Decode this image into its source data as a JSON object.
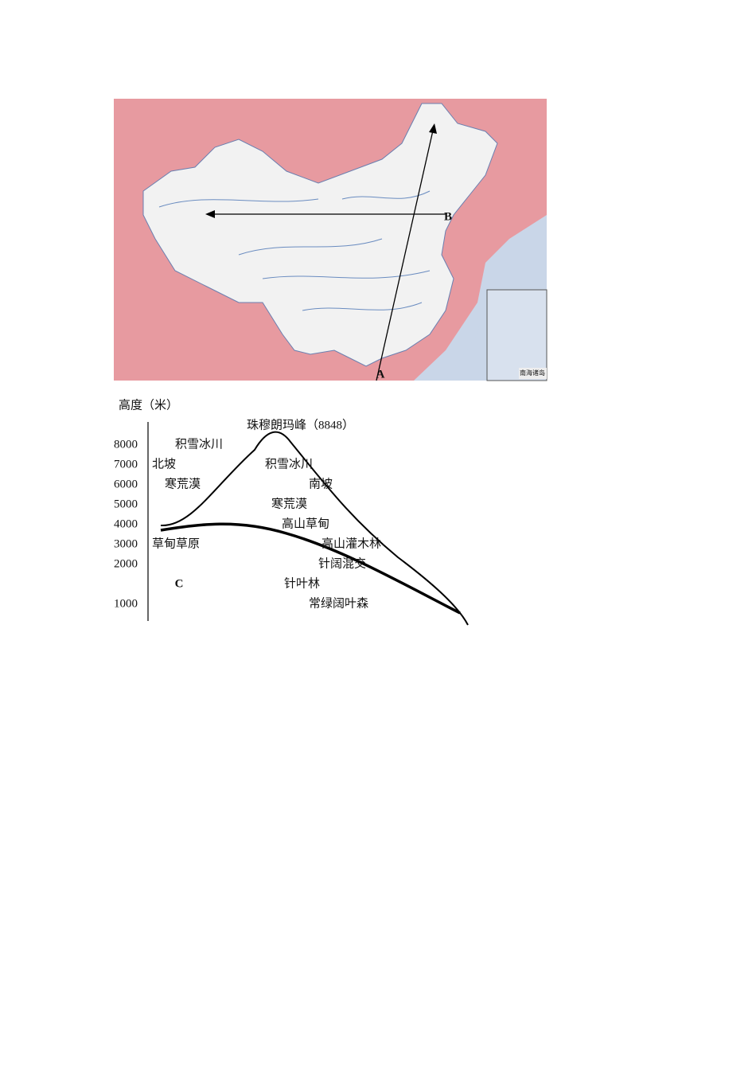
{
  "map": {
    "inset_label": "南海诸岛",
    "point_a": "A",
    "point_b": "B"
  },
  "diagram": {
    "axis_title": "高度（米）",
    "ticks": [
      8000,
      7000,
      6000,
      5000,
      4000,
      3000,
      2000,
      1000
    ],
    "peak_label": "珠穆朗玛峰（8848）",
    "north_slope": {
      "title": "北坡",
      "zones": [
        "积雪冰川",
        "寒荒漠",
        "草甸草原"
      ]
    },
    "south_slope": {
      "title": "南坡",
      "zones": [
        "积雪冰川",
        "寒荒漠",
        "高山草甸",
        "高山灌木林",
        "针阔混交",
        "针叶林",
        "常绿阔叶森"
      ]
    },
    "point_c": "C"
  }
}
